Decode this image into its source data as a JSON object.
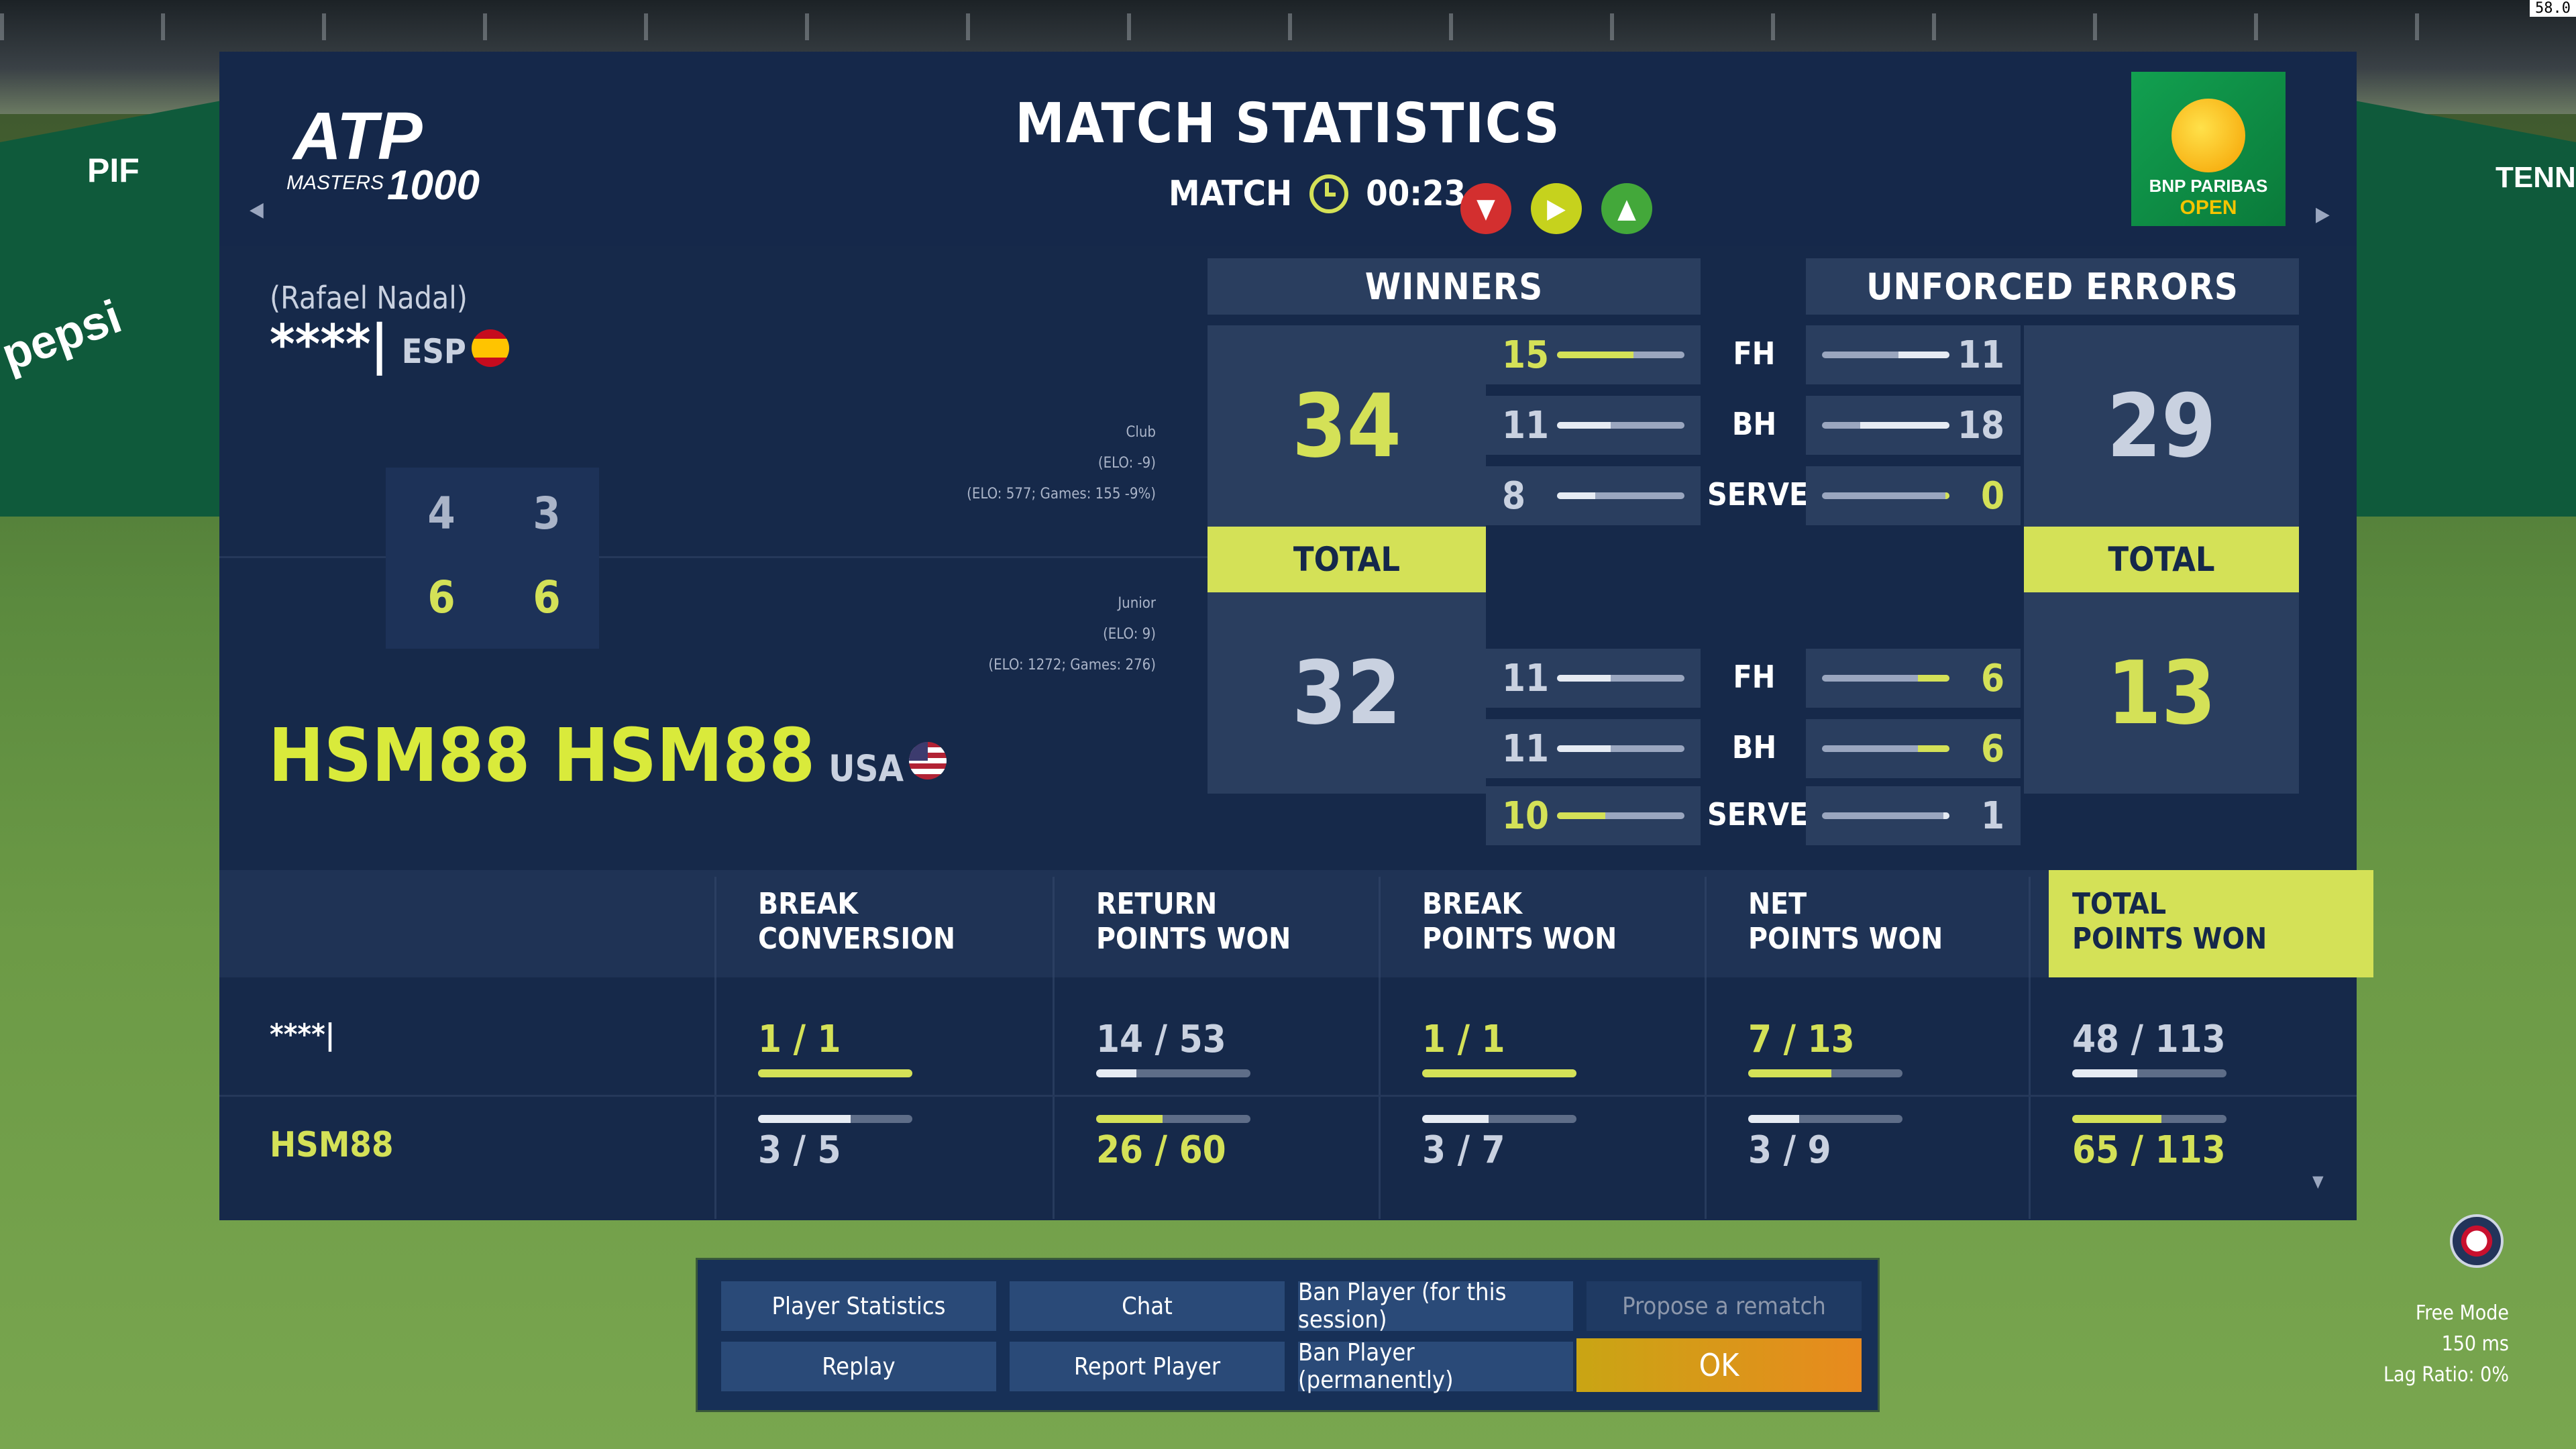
{
  "fps": "58.0",
  "title": "MATCH STATISTICS",
  "match": {
    "label": "MATCH",
    "time": "00:23"
  },
  "brand": {
    "atp_line1": "ATP",
    "atp_line2": "MASTERS",
    "atp_num": "1000",
    "bnp_line1": "BNP PARIBAS",
    "bnp_line2": "OPEN"
  },
  "player1": {
    "realname": "(Rafael Nadal)",
    "name": "****|",
    "country": "ESP",
    "elo": [
      "Club",
      "(ELO: -9)",
      "(ELO: 577; Games: 155 -9%)"
    ],
    "short": "****|"
  },
  "player2": {
    "name": "HSM88 HSM88",
    "country": "USA",
    "elo": [
      "Junior",
      "(ELO: 9)",
      "(ELO: 1272; Games: 276)"
    ],
    "short": "HSM88"
  },
  "sets": {
    "p1": [
      "4",
      "3"
    ],
    "p2": [
      "6",
      "6"
    ]
  },
  "winners": {
    "header": "WINNERS",
    "total_label": "TOTAL",
    "p1_total": "34",
    "p2_total": "32",
    "p1": [
      {
        "v": "15",
        "f": 0.6,
        "hl": true
      },
      {
        "v": "11",
        "f": 0.42,
        "hl": false
      },
      {
        "v": "8",
        "f": 0.3,
        "hl": false
      }
    ],
    "p2": [
      {
        "v": "11",
        "f": 0.42,
        "hl": false
      },
      {
        "v": "11",
        "f": 0.42,
        "hl": false
      },
      {
        "v": "10",
        "f": 0.38,
        "hl": true
      }
    ]
  },
  "errors": {
    "header": "UNFORCED ERRORS",
    "total_label": "TOTAL",
    "p1_total": "29",
    "p2_total": "13",
    "p1": [
      {
        "v": "11",
        "f": 0.4,
        "hl": false
      },
      {
        "v": "18",
        "f": 0.7,
        "hl": false
      },
      {
        "v": "0",
        "f": 0,
        "hl": true
      }
    ],
    "p2": [
      {
        "v": "6",
        "f": 0.25,
        "hl": true
      },
      {
        "v": "6",
        "f": 0.25,
        "hl": true
      },
      {
        "v": "1",
        "f": 0.05,
        "hl": false
      }
    ]
  },
  "shot_labels": [
    "FH",
    "BH",
    "SERVE"
  ],
  "columns": [
    {
      "l1": "BREAK",
      "l2": "CONVERSION",
      "p1": "1 / 1",
      "p1f": 1.0,
      "p1hl": true,
      "p2": "3 / 5",
      "p2f": 0.6,
      "p2hl": false
    },
    {
      "l1": "RETURN",
      "l2": "POINTS WON",
      "p1": "14 / 53",
      "p1f": 0.26,
      "p1hl": false,
      "p2": "26 / 60",
      "p2f": 0.43,
      "p2hl": true
    },
    {
      "l1": "BREAK",
      "l2": "POINTS WON",
      "p1": "1 / 1",
      "p1f": 1.0,
      "p1hl": true,
      "p2": "3 / 7",
      "p2f": 0.43,
      "p2hl": false
    },
    {
      "l1": "NET",
      "l2": "POINTS WON",
      "p1": "7 / 13",
      "p1f": 0.54,
      "p1hl": true,
      "p2": "3 / 9",
      "p2f": 0.33,
      "p2hl": false
    },
    {
      "l1": "TOTAL",
      "l2": "POINTS WON",
      "p1": "48 / 113",
      "p1f": 0.42,
      "p1hl": false,
      "p2": "65 / 113",
      "p2f": 0.58,
      "p2hl": true
    }
  ],
  "menu": {
    "player_stats": "Player Statistics",
    "chat": "Chat",
    "ban_session": "Ban Player (for this session)",
    "rematch": "Propose a rematch",
    "replay": "Replay",
    "report": "Report Player",
    "ban_perm": "Ban Player (permanently)",
    "ok": "OK"
  },
  "status": {
    "mode": "Free Mode",
    "ping": "150 ms",
    "lag": "Lag Ratio: 0%"
  },
  "walls": {
    "left1": "PIF",
    "left2": "pepsi",
    "right1": "TENN"
  },
  "colors": {
    "accent": "#d4e157",
    "panel": "#16294a",
    "cell": "#2a3e5f"
  }
}
